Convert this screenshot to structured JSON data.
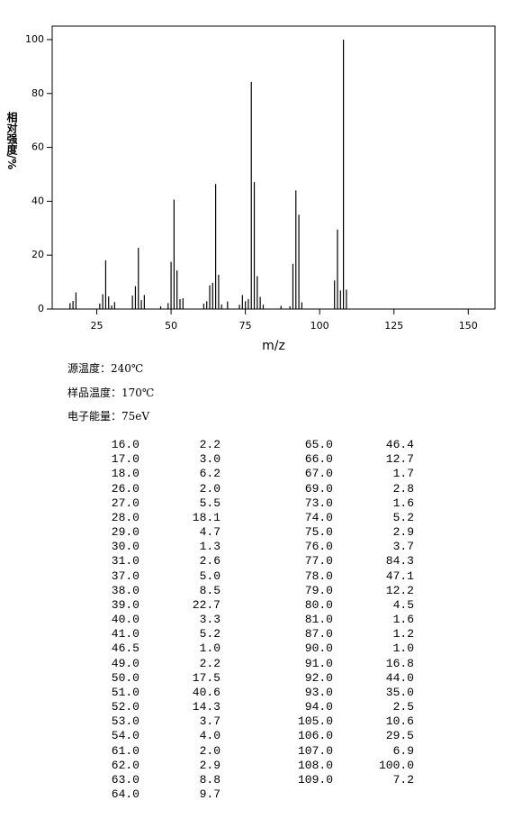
{
  "chart_data": {
    "type": "bar",
    "x_label": "m/z",
    "y_label": "相对强度/%",
    "color": "#000000",
    "x": [
      16,
      17,
      18,
      26,
      27,
      28,
      29,
      30,
      31,
      37,
      38,
      39,
      40,
      41,
      46.5,
      49,
      50,
      51,
      52,
      53,
      54,
      61,
      62,
      63,
      64,
      65,
      66,
      67,
      69,
      73,
      74,
      75,
      76,
      77,
      78,
      79,
      80,
      81,
      87,
      90,
      91,
      92,
      93,
      94,
      105,
      106,
      107,
      108,
      109
    ],
    "values": [
      2.2,
      3.0,
      6.2,
      2.0,
      5.5,
      18.1,
      4.7,
      1.3,
      2.6,
      5.0,
      8.5,
      22.7,
      3.3,
      5.2,
      1.0,
      2.2,
      17.5,
      40.6,
      14.3,
      3.7,
      4.0,
      2.0,
      2.9,
      8.8,
      9.7,
      46.4,
      12.7,
      1.7,
      2.8,
      1.6,
      5.2,
      2.9,
      3.7,
      84.3,
      47.1,
      12.2,
      4.5,
      1.6,
      1.2,
      1.0,
      16.8,
      44.0,
      35.0,
      2.5,
      10.6,
      29.5,
      6.9,
      100.0,
      7.2
    ],
    "xlim": [
      10,
      159
    ],
    "xticks": [
      25,
      50,
      75,
      100,
      125,
      150
    ],
    "ylim": [
      0,
      105
    ],
    "yticks": [
      0,
      20,
      40,
      60,
      80,
      100
    ]
  },
  "info": [
    "源温度：240℃",
    "样品温度：170℃",
    "电子能量：75eV"
  ],
  "table": {
    "rows": [
      [
        "16.0",
        "2.2"
      ],
      [
        "17.0",
        "3.0"
      ],
      [
        "18.0",
        "6.2"
      ],
      [
        "26.0",
        "2.0"
      ],
      [
        "27.0",
        "5.5"
      ],
      [
        "28.0",
        "18.1"
      ],
      [
        "29.0",
        "4.7"
      ],
      [
        "30.0",
        "1.3"
      ],
      [
        "31.0",
        "2.6"
      ],
      [
        "37.0",
        "5.0"
      ],
      [
        "38.0",
        "8.5"
      ],
      [
        "39.0",
        "22.7"
      ],
      [
        "40.0",
        "3.3"
      ],
      [
        "41.0",
        "5.2"
      ],
      [
        "46.5",
        "1.0"
      ],
      [
        "49.0",
        "2.2"
      ],
      [
        "50.0",
        "17.5"
      ],
      [
        "51.0",
        "40.6"
      ],
      [
        "52.0",
        "14.3"
      ],
      [
        "53.0",
        "3.7"
      ],
      [
        "54.0",
        "4.0"
      ],
      [
        "61.0",
        "2.0"
      ],
      [
        "62.0",
        "2.9"
      ],
      [
        "63.0",
        "8.8"
      ],
      [
        "64.0",
        "9.7"
      ],
      [
        "65.0",
        "46.4"
      ],
      [
        "66.0",
        "12.7"
      ],
      [
        "67.0",
        "1.7"
      ],
      [
        "69.0",
        "2.8"
      ],
      [
        "73.0",
        "1.6"
      ],
      [
        "74.0",
        "5.2"
      ],
      [
        "75.0",
        "2.9"
      ],
      [
        "76.0",
        "3.7"
      ],
      [
        "77.0",
        "84.3"
      ],
      [
        "78.0",
        "47.1"
      ],
      [
        "79.0",
        "12.2"
      ],
      [
        "80.0",
        "4.5"
      ],
      [
        "81.0",
        "1.6"
      ],
      [
        "87.0",
        "1.2"
      ],
      [
        "90.0",
        "1.0"
      ],
      [
        "91.0",
        "16.8"
      ],
      [
        "92.0",
        "44.0"
      ],
      [
        "93.0",
        "35.0"
      ],
      [
        "94.0",
        "2.5"
      ],
      [
        "105.0",
        "10.6"
      ],
      [
        "106.0",
        "29.5"
      ],
      [
        "107.0",
        "6.9"
      ],
      [
        "108.0",
        "100.0"
      ],
      [
        "109.0",
        "7.2"
      ]
    ]
  }
}
